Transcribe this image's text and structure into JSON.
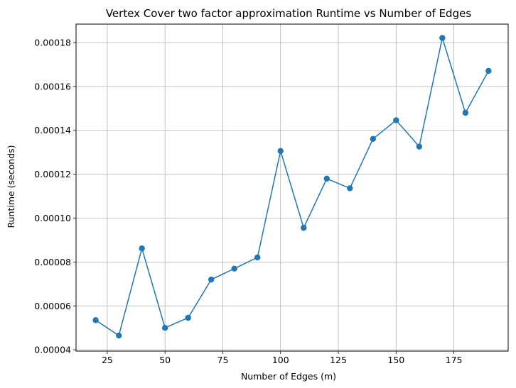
{
  "chart_data": {
    "type": "line",
    "title": "Vertex Cover two factor approximation Runtime vs Number of Edges",
    "xlabel": "Number of Edges (m)",
    "ylabel": "Runtime (seconds)",
    "xlim": [
      11.5,
      198.5
    ],
    "ylim": [
      3.94e-05,
      0.0001884
    ],
    "x_ticks": [
      25,
      50,
      75,
      100,
      125,
      150,
      175
    ],
    "x_tick_labels": [
      "25",
      "50",
      "75",
      "100",
      "125",
      "150",
      "175"
    ],
    "y_ticks": [
      4e-05,
      6e-05,
      8e-05,
      0.0001,
      0.00012,
      0.00014,
      0.00016,
      0.00018
    ],
    "y_tick_labels": [
      "0.00004",
      "0.00006",
      "0.00008",
      "0.00010",
      "0.00012",
      "0.00014",
      "0.00016",
      "0.00018"
    ],
    "grid": true,
    "series": [
      {
        "color": "#1f77b4",
        "marker": "circle",
        "x": [
          20,
          30,
          40,
          50,
          60,
          70,
          80,
          90,
          100,
          110,
          120,
          130,
          140,
          150,
          160,
          170,
          180,
          190
        ],
        "y": [
          5.35e-05,
          4.65e-05,
          8.62e-05,
          5e-05,
          5.46e-05,
          7.2e-05,
          7.7e-05,
          8.21e-05,
          0.0001306,
          9.56e-05,
          0.000118,
          0.0001136,
          0.0001361,
          0.0001446,
          0.0001326,
          0.0001821,
          0.000148,
          0.0001671
        ]
      }
    ]
  }
}
